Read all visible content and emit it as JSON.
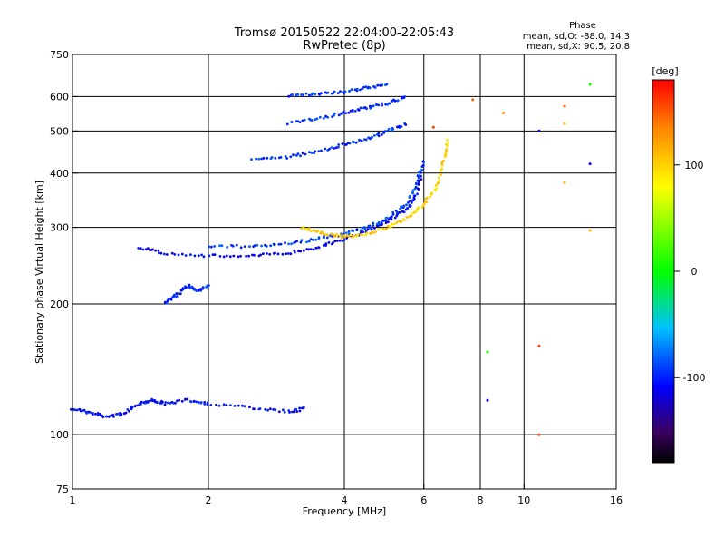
{
  "chart_data": {
    "type": "scatter",
    "title": "Tromsø 20150522 22:04:00-22:05:43",
    "subtitle": "RwPretec (8p)",
    "xlabel": "Frequency [MHz]",
    "ylabel": "Stationary phase Virtual Height [km]",
    "x_scale": "log",
    "y_scale": "log",
    "xlim": [
      1,
      16
    ],
    "ylim": [
      75,
      750
    ],
    "x_ticks": [
      "1",
      "2",
      "4",
      "6",
      "8",
      "10",
      "16"
    ],
    "y_ticks": [
      "75",
      "100",
      "200",
      "300",
      "400",
      "500",
      "600",
      "750"
    ],
    "phase_info": {
      "heading": "Phase",
      "line_o": "mean, sd,O: -88.0, 14.3",
      "line_x": "mean, sd,X: 90.5, 20.8"
    },
    "colorbar": {
      "label": "[deg]",
      "ticks": [
        "100",
        "0",
        "-100"
      ],
      "range": [
        -180,
        180
      ]
    },
    "grid": true,
    "traces": [
      {
        "x": [
          1.0,
          1.1,
          1.2,
          1.3,
          1.4,
          1.5,
          1.6,
          1.8,
          2.0,
          2.5,
          3.0,
          3.3
        ],
        "y": [
          115,
          112,
          110,
          112,
          118,
          120,
          118,
          120,
          118,
          115,
          113,
          115
        ],
        "phase": -105
      },
      {
        "x": [
          1.4,
          1.6,
          2.0,
          2.5,
          3.0,
          3.5,
          4.0,
          4.5,
          5.0,
          5.5,
          5.8,
          6.0
        ],
        "y": [
          270,
          262,
          258,
          258,
          262,
          270,
          282,
          295,
          310,
          330,
          360,
          420
        ],
        "phase": -110
      },
      {
        "x": [
          2.0,
          2.5,
          3.0,
          3.5,
          4.0,
          4.5,
          5.0,
          5.5,
          5.8,
          6.0
        ],
        "y": [
          270,
          272,
          275,
          282,
          290,
          300,
          315,
          340,
          380,
          430
        ],
        "phase": -90
      },
      {
        "x": [
          2.5,
          3.0,
          3.5,
          4.0,
          4.5,
          5.0,
          5.5
        ],
        "y": [
          430,
          435,
          450,
          465,
          480,
          500,
          520
        ],
        "phase": -95
      },
      {
        "x": [
          3.0,
          3.5,
          4.0,
          4.5,
          5.0,
          5.5
        ],
        "y": [
          520,
          535,
          550,
          565,
          580,
          600
        ],
        "phase": -95
      },
      {
        "x": [
          3.0,
          3.5,
          4.0,
          4.5,
          5.0
        ],
        "y": [
          600,
          610,
          615,
          630,
          640
        ],
        "phase": -95
      },
      {
        "x": [
          3.2,
          3.6,
          4.0,
          4.5,
          5.0,
          5.5,
          6.0,
          6.4,
          6.6,
          6.8
        ],
        "y": [
          300,
          290,
          285,
          290,
          300,
          315,
          340,
          370,
          420,
          480
        ],
        "phase": 100
      },
      {
        "x": [
          1.6,
          1.7,
          1.8,
          1.9,
          2.0
        ],
        "y": [
          200,
          210,
          220,
          215,
          220
        ],
        "phase": -100
      }
    ],
    "sparse_points": [
      {
        "x": 8.3,
        "y": 120,
        "phase": -110
      },
      {
        "x": 8.3,
        "y": 155,
        "phase": 10
      },
      {
        "x": 10.8,
        "y": 100,
        "phase": 160
      },
      {
        "x": 10.8,
        "y": 160,
        "phase": 160
      },
      {
        "x": 10.8,
        "y": 500,
        "phase": -110
      },
      {
        "x": 12.3,
        "y": 380,
        "phase": 120
      },
      {
        "x": 12.3,
        "y": 520,
        "phase": 110
      },
      {
        "x": 12.3,
        "y": 570,
        "phase": 150
      },
      {
        "x": 14.0,
        "y": 420,
        "phase": -110
      },
      {
        "x": 14.0,
        "y": 295,
        "phase": 110
      },
      {
        "x": 14.0,
        "y": 640,
        "phase": 0
      },
      {
        "x": 9.0,
        "y": 550,
        "phase": 130
      },
      {
        "x": 7.7,
        "y": 590,
        "phase": 150
      },
      {
        "x": 6.3,
        "y": 510,
        "phase": 160
      }
    ]
  }
}
